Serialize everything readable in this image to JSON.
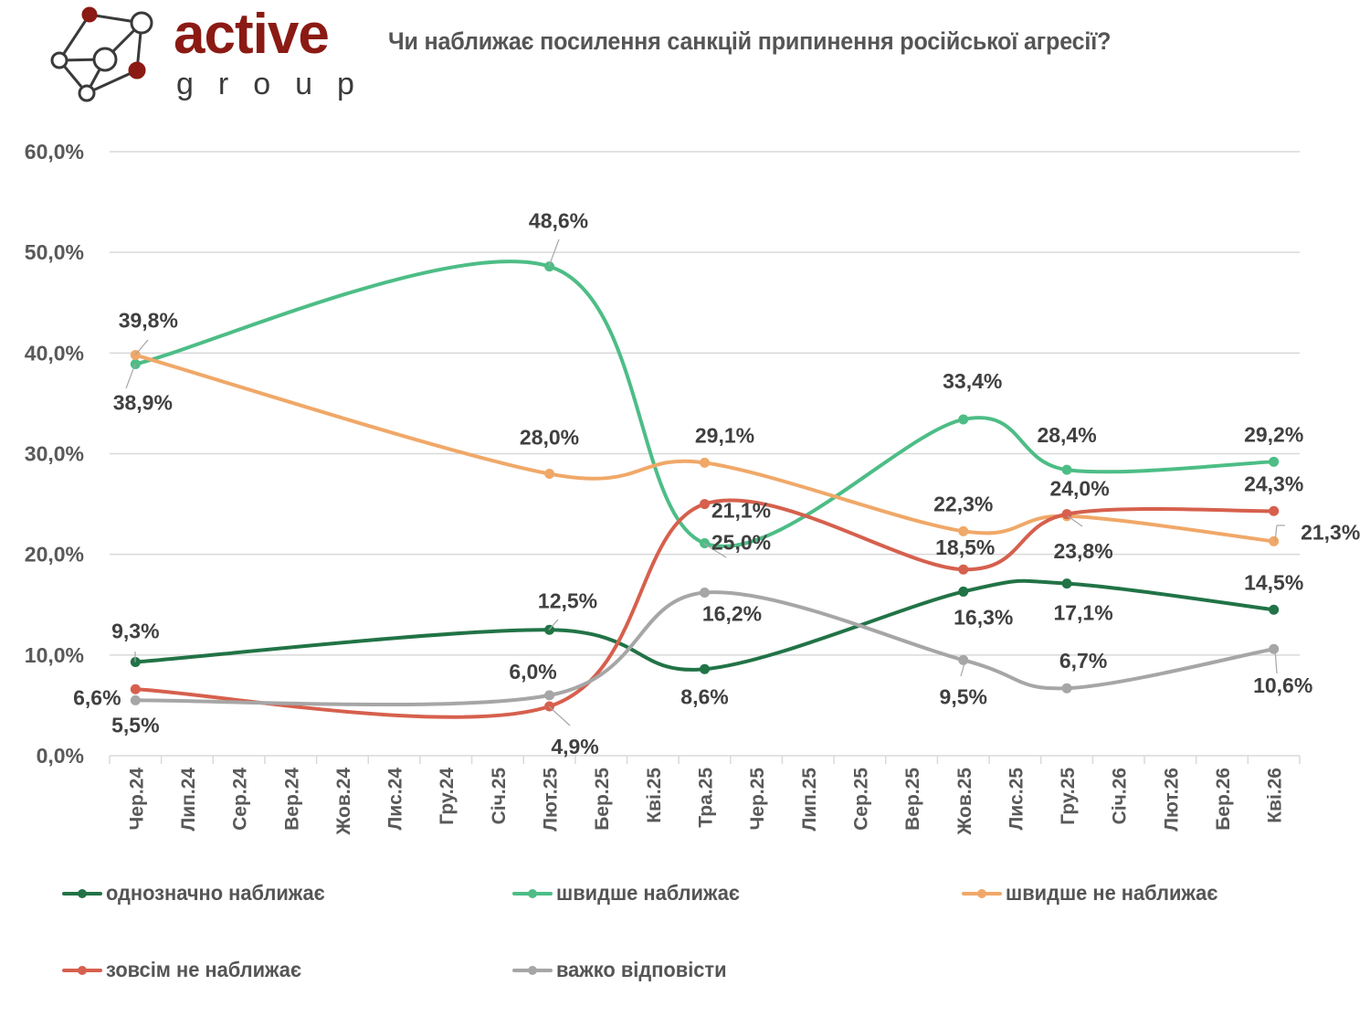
{
  "logo": {
    "brand_word": "active",
    "brand_sub": "group",
    "brand_color": "#8b1a14",
    "icon": "network-nodes-icon"
  },
  "chart_data": {
    "type": "line",
    "title": "Чи наближає посилення санкцій припинення російської агресії?",
    "xlabel": "",
    "ylabel": "",
    "ylim": [
      0,
      60
    ],
    "y_ticks": [
      "0,0%",
      "10,0%",
      "20,0%",
      "30,0%",
      "40,0%",
      "50,0%",
      "60,0%"
    ],
    "y_tick_values": [
      0,
      10,
      20,
      30,
      40,
      50,
      60
    ],
    "grid": true,
    "smooth": true,
    "legend_position": "bottom",
    "categories": [
      "Чер.24",
      "Лип.24",
      "Сер.24",
      "Вер.24",
      "Жов.24",
      "Лис.24",
      "Гру.24",
      "Січ.25",
      "Лют.25",
      "Бер.25",
      "Кві.25",
      "Тра.25",
      "Чер.25",
      "Лип.25",
      "Сер.25",
      "Вер.25",
      "Жов.25",
      "Лис.25",
      "Гру.25",
      "Січ.26",
      "Лют.26",
      "Бер.26",
      "Кві.26"
    ],
    "x_data": [
      "Чер.24",
      "Лют.25",
      "Тра.25",
      "Жов.25",
      "Гру.25",
      "Кві.26"
    ],
    "series": [
      {
        "name": "однозначно наближає",
        "color": "#217346",
        "values": [
          9.3,
          12.5,
          8.6,
          16.3,
          17.1,
          14.5
        ],
        "labels": [
          "9,3%",
          "12,5%",
          "8,6%",
          "16,3%",
          "17,1%",
          "14,5%"
        ],
        "label_pos": [
          "above",
          "above",
          "below",
          "below",
          "below",
          "above"
        ]
      },
      {
        "name": "швидше наближає",
        "color": "#4dbd86",
        "values": [
          38.9,
          48.6,
          21.1,
          33.4,
          28.4,
          29.2
        ],
        "labels": [
          "38,9%",
          "48,6%",
          "21,1%",
          "33,4%",
          "28,4%",
          "29,2%"
        ],
        "label_pos": [
          "below",
          "above",
          "below",
          "above",
          "above",
          "above"
        ]
      },
      {
        "name": "швидше не наближає",
        "color": "#f0a868",
        "values": [
          39.8,
          28.0,
          29.1,
          22.3,
          23.8,
          21.3
        ],
        "labels": [
          "39,8%",
          "28,0%",
          "29,1%",
          "22,3%",
          "23,8%",
          "21,3%"
        ],
        "label_pos": [
          "above",
          "above",
          "above",
          "above",
          "below",
          "right"
        ]
      },
      {
        "name": "зовсім не наближає",
        "color": "#d6604d",
        "values": [
          6.6,
          4.9,
          25.0,
          18.5,
          24.0,
          24.3
        ],
        "labels": [
          "6,6%",
          "4,9%",
          "25,0%",
          "18,5%",
          "24,0%",
          "24,3%"
        ],
        "label_pos": [
          "left",
          "below",
          "below",
          "above",
          "above",
          "above"
        ]
      },
      {
        "name": "важко відповісти",
        "color": "#a6a6a6",
        "values": [
          5.5,
          6.0,
          16.2,
          9.5,
          6.7,
          10.6
        ],
        "labels": [
          "5,5%",
          "6,0%",
          "16,2%",
          "9,5%",
          "6,7%",
          "10,6%"
        ],
        "label_pos": [
          "below",
          "above",
          "below",
          "below",
          "above",
          "below"
        ]
      }
    ]
  }
}
